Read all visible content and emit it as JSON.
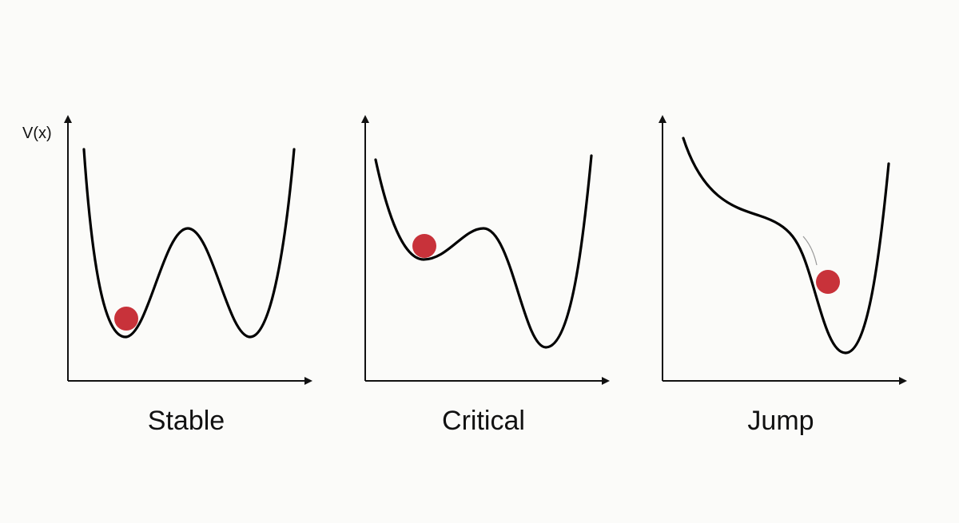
{
  "axis_label": "V(x)",
  "panels": [
    {
      "label": "Stable"
    },
    {
      "label": "Critical"
    },
    {
      "label": "Jump"
    }
  ]
}
